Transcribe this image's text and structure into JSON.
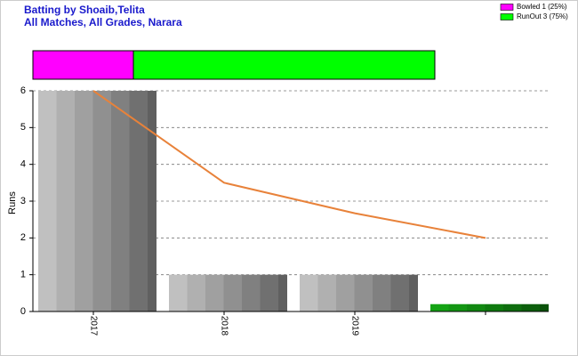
{
  "chart_data": [
    {
      "type": "stacked-bar",
      "title": "Batting by Shoaib,Telita",
      "subtitle": "All Matches, All Grades, Narara",
      "xlim": [
        0,
        100
      ],
      "series": [
        {
          "name": "Bowled 1 (25%)",
          "color": "#ff00ff",
          "values": [
            25
          ]
        },
        {
          "name": "RunOut 3 (75%)",
          "color": "#00ff00",
          "values": [
            75
          ]
        }
      ]
    },
    {
      "type": "bar",
      "ylabel": "Runs",
      "categories": [
        "2017",
        "2018",
        "2019",
        null
      ],
      "values": [
        6,
        1,
        1,
        0.2
      ],
      "colors": [
        "#a0a0a0",
        "#a0a0a0",
        "#a0a0a0",
        "#118811"
      ],
      "line": {
        "values": [
          6,
          3.5,
          2.67,
          2
        ],
        "color": "#e8823a"
      },
      "ylim": [
        0,
        6
      ],
      "yticks": [
        0,
        1,
        2,
        3,
        4,
        5,
        6
      ],
      "grid": true
    }
  ]
}
